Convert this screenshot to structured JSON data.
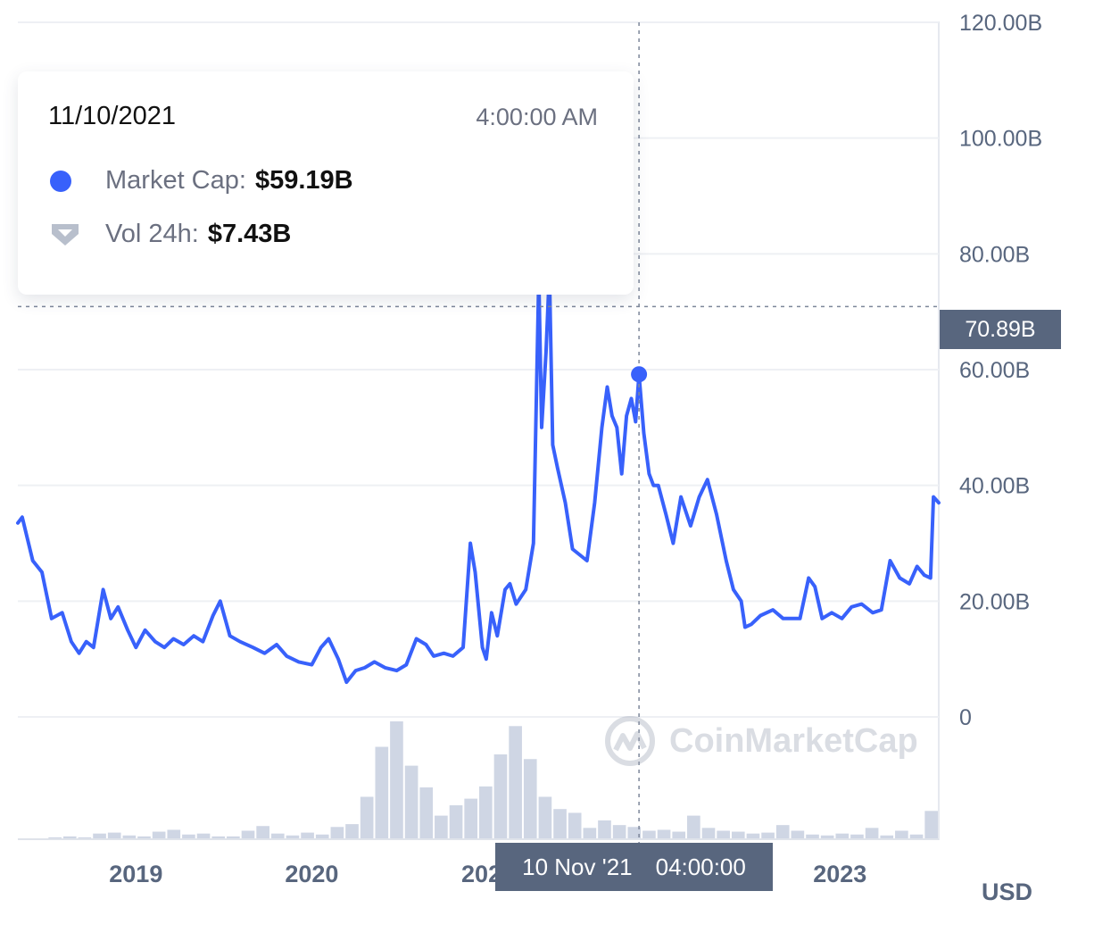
{
  "chart_data": {
    "type": "line",
    "title": "",
    "xlabel": "",
    "ylabel": "",
    "currency_label": "USD",
    "ylim": [
      0,
      120000000000
    ],
    "y_ticks": [
      {
        "value": 0,
        "label": "0"
      },
      {
        "value": 20000000000,
        "label": "20.00B"
      },
      {
        "value": 40000000000,
        "label": "40.00B"
      },
      {
        "value": 60000000000,
        "label": "60.00B"
      },
      {
        "value": 80000000000,
        "label": "80.00B"
      },
      {
        "value": 100000000000,
        "label": "100.00B"
      },
      {
        "value": 120000000000,
        "label": "120.00B"
      }
    ],
    "xlim": [
      "2018-05-01",
      "2023-07-25"
    ],
    "x_ticks": [
      {
        "date": "2019-01-01",
        "label": "2019"
      },
      {
        "date": "2020-01-01",
        "label": "2020"
      },
      {
        "date": "2021-01-01",
        "label": "2021"
      },
      {
        "date": "2023-01-01",
        "label": "2023"
      }
    ],
    "series": [
      {
        "name": "Market Cap",
        "color": "#3861fb",
        "points": [
          [
            "2018-05-01",
            33500000000.0
          ],
          [
            "2018-05-10",
            34500000000.0
          ],
          [
            "2018-06-01",
            27000000000.0
          ],
          [
            "2018-06-20",
            25000000000.0
          ],
          [
            "2018-07-10",
            17000000000.0
          ],
          [
            "2018-08-01",
            18000000000.0
          ],
          [
            "2018-08-20",
            13000000000.0
          ],
          [
            "2018-09-05",
            11000000000.0
          ],
          [
            "2018-09-20",
            13000000000.0
          ],
          [
            "2018-10-05",
            12000000000.0
          ],
          [
            "2018-10-25",
            22000000000.0
          ],
          [
            "2018-11-10",
            17000000000.0
          ],
          [
            "2018-11-25",
            19000000000.0
          ],
          [
            "2018-12-15",
            15000000000.0
          ],
          [
            "2019-01-01",
            12000000000.0
          ],
          [
            "2019-01-20",
            15000000000.0
          ],
          [
            "2019-02-10",
            13000000000.0
          ],
          [
            "2019-03-01",
            12000000000.0
          ],
          [
            "2019-03-20",
            13500000000.0
          ],
          [
            "2019-04-10",
            12500000000.0
          ],
          [
            "2019-05-01",
            14000000000.0
          ],
          [
            "2019-05-20",
            13000000000.0
          ],
          [
            "2019-06-10",
            17500000000.0
          ],
          [
            "2019-06-25",
            20000000000.0
          ],
          [
            "2019-07-15",
            14000000000.0
          ],
          [
            "2019-08-05",
            13000000000.0
          ],
          [
            "2019-09-01",
            12000000000.0
          ],
          [
            "2019-09-25",
            11000000000.0
          ],
          [
            "2019-10-20",
            12500000000.0
          ],
          [
            "2019-11-10",
            10500000000.0
          ],
          [
            "2019-12-05",
            9500000000.0
          ],
          [
            "2020-01-01",
            9000000000.0
          ],
          [
            "2020-01-20",
            12000000000.0
          ],
          [
            "2020-02-05",
            13500000000.0
          ],
          [
            "2020-02-25",
            10000000000.0
          ],
          [
            "2020-03-13",
            6000000000.0
          ],
          [
            "2020-04-01",
            8000000000.0
          ],
          [
            "2020-04-20",
            8500000000.0
          ],
          [
            "2020-05-10",
            9500000000.0
          ],
          [
            "2020-06-01",
            8500000000.0
          ],
          [
            "2020-06-25",
            8000000000.0
          ],
          [
            "2020-07-15",
            9000000000.0
          ],
          [
            "2020-08-05",
            13500000000.0
          ],
          [
            "2020-08-25",
            12500000000.0
          ],
          [
            "2020-09-10",
            10500000000.0
          ],
          [
            "2020-10-01",
            11000000000.0
          ],
          [
            "2020-10-20",
            10500000000.0
          ],
          [
            "2020-11-10",
            12000000000.0
          ],
          [
            "2020-11-25",
            30000000000.0
          ],
          [
            "2020-12-05",
            25000000000.0
          ],
          [
            "2020-12-20",
            12000000000.0
          ],
          [
            "2020-12-28",
            10000000000.0
          ],
          [
            "2021-01-08",
            18000000000.0
          ],
          [
            "2021-01-20",
            14000000000.0
          ],
          [
            "2021-02-05",
            22000000000.0
          ],
          [
            "2021-02-15",
            23000000000.0
          ],
          [
            "2021-02-28",
            19500000000.0
          ],
          [
            "2021-03-20",
            22000000000.0
          ],
          [
            "2021-04-05",
            30000000000.0
          ],
          [
            "2021-04-16",
            76000000000.0
          ],
          [
            "2021-04-22",
            50000000000.0
          ],
          [
            "2021-05-01",
            63000000000.0
          ],
          [
            "2021-05-08",
            77000000000.0
          ],
          [
            "2021-05-15",
            47000000000.0
          ],
          [
            "2021-05-25",
            43000000000.0
          ],
          [
            "2021-06-10",
            37000000000.0
          ],
          [
            "2021-06-25",
            29000000000.0
          ],
          [
            "2021-07-10",
            28000000000.0
          ],
          [
            "2021-07-25",
            27000000000.0
          ],
          [
            "2021-08-10",
            37000000000.0
          ],
          [
            "2021-08-25",
            50000000000.0
          ],
          [
            "2021-09-05",
            57000000000.0
          ],
          [
            "2021-09-15",
            52000000000.0
          ],
          [
            "2021-09-25",
            50000000000.0
          ],
          [
            "2021-10-05",
            42000000000.0
          ],
          [
            "2021-10-15",
            52000000000.0
          ],
          [
            "2021-10-25",
            55000000000.0
          ],
          [
            "2021-11-03",
            51000000000.0
          ],
          [
            "2021-11-10",
            59190000000.0
          ],
          [
            "2021-11-20",
            49000000000.0
          ],
          [
            "2021-12-01",
            42000000000.0
          ],
          [
            "2021-12-10",
            40000000000.0
          ],
          [
            "2021-12-20",
            40000000000.0
          ],
          [
            "2022-01-05",
            35000000000.0
          ],
          [
            "2022-01-20",
            30000000000.0
          ],
          [
            "2022-02-05",
            38000000000.0
          ],
          [
            "2022-02-25",
            33000000000.0
          ],
          [
            "2022-03-15",
            38000000000.0
          ],
          [
            "2022-04-01",
            41000000000.0
          ],
          [
            "2022-04-20",
            35000000000.0
          ],
          [
            "2022-05-10",
            27000000000.0
          ],
          [
            "2022-05-25",
            22000000000.0
          ],
          [
            "2022-06-10",
            20000000000.0
          ],
          [
            "2022-06-18",
            15500000000.0
          ],
          [
            "2022-07-01",
            16000000000.0
          ],
          [
            "2022-07-20",
            17500000000.0
          ],
          [
            "2022-08-15",
            18500000000.0
          ],
          [
            "2022-09-05",
            17000000000.0
          ],
          [
            "2022-09-25",
            17000000000.0
          ],
          [
            "2022-10-10",
            17000000000.0
          ],
          [
            "2022-10-28",
            24000000000.0
          ],
          [
            "2022-11-10",
            22500000000.0
          ],
          [
            "2022-11-25",
            17000000000.0
          ],
          [
            "2022-12-15",
            18000000000.0
          ],
          [
            "2023-01-05",
            17000000000.0
          ],
          [
            "2023-01-25",
            19000000000.0
          ],
          [
            "2023-02-15",
            19500000000.0
          ],
          [
            "2023-03-10",
            18000000000.0
          ],
          [
            "2023-03-28",
            18500000000.0
          ],
          [
            "2023-04-15",
            27000000000.0
          ],
          [
            "2023-05-05",
            24000000000.0
          ],
          [
            "2023-05-25",
            23000000000.0
          ],
          [
            "2023-06-10",
            26000000000.0
          ],
          [
            "2023-06-25",
            24500000000.0
          ],
          [
            "2023-07-08",
            24000000000.0
          ],
          [
            "2023-07-14",
            38000000000.0
          ],
          [
            "2023-07-25",
            37000000000.0
          ]
        ]
      },
      {
        "name": "Vol 24h",
        "color": "#cfd6e4",
        "values": [
          0.1,
          0.1,
          0.2,
          0.3,
          0.2,
          0.6,
          0.7,
          0.4,
          0.3,
          0.8,
          1.0,
          0.5,
          0.6,
          0.3,
          0.3,
          0.9,
          1.4,
          0.6,
          0.4,
          0.7,
          0.5,
          1.3,
          1.6,
          4.5,
          9.8,
          12.5,
          7.8,
          5.5,
          2.5,
          3.6,
          4.3,
          5.6,
          9.0,
          12.0,
          8.5,
          4.5,
          3.2,
          2.8,
          1.2,
          2.0,
          1.5,
          1.3,
          0.9,
          1.0,
          0.8,
          2.5,
          1.2,
          0.9,
          0.8,
          0.6,
          0.7,
          1.5,
          0.9,
          0.5,
          0.4,
          0.6,
          0.5,
          1.2,
          0.4,
          0.9,
          0.5,
          3.0
        ]
      }
    ],
    "tooltip": {
      "date": "11/10/2021",
      "time": "4:00:00 AM",
      "market_cap_label": "Market Cap:",
      "market_cap_value": "$59.19B",
      "vol_label": "Vol 24h:",
      "vol_value": "$7.43B"
    },
    "highlight": {
      "date": "2021-11-10",
      "value": 59190000000
    },
    "crosshair": {
      "date_text": "10 Nov '21",
      "time_text": "04:00:00",
      "price_value": 70890000000,
      "price_text": "70.89B"
    },
    "watermark": "CoinMarketCap",
    "grid": true,
    "legend": "tooltip"
  }
}
